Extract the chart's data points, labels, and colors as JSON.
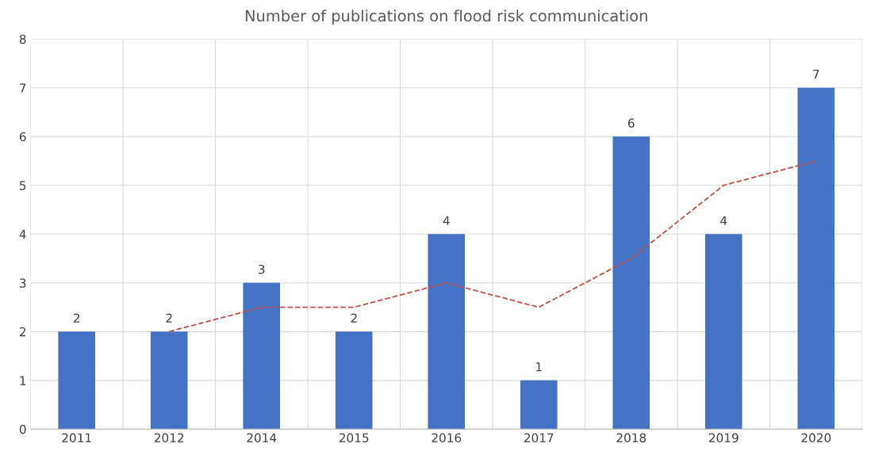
{
  "chart_data": {
    "type": "bar",
    "title": "Number of publications on flood risk communication",
    "categories": [
      "2011",
      "2012",
      "2014",
      "2015",
      "2016",
      "2017",
      "2018",
      "2019",
      "2020"
    ],
    "series": [
      {
        "color": "#4472c4",
        "values": [
          2,
          2,
          3,
          2,
          4,
          1,
          6,
          4,
          7
        ],
        "value_labels": [
          "2",
          "2",
          "3",
          "2",
          "4",
          "1",
          "6",
          "4",
          "7"
        ]
      },
      {
        "type": "line",
        "color": "#c0504d",
        "line_style": "dashed",
        "values": [
          null,
          2,
          2.5,
          2.5,
          3,
          2.5,
          3.5,
          5,
          5.5
        ]
      }
    ],
    "ylim": [
      0,
      8
    ],
    "yticks": [
      0,
      1,
      2,
      3,
      4,
      5,
      6,
      7,
      8
    ],
    "grid": true
  }
}
